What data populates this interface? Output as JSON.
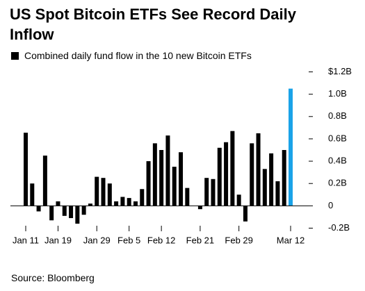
{
  "chart_data": {
    "type": "bar",
    "title": "US Spot Bitcoin ETFs See Record Daily Inflow",
    "legend_label": "Combined daily fund flow in the 10 new Bitcoin ETFs",
    "source": "Source: Bloomberg",
    "categories": [
      "Jan 11",
      null,
      null,
      null,
      null,
      "Jan 19",
      null,
      null,
      null,
      null,
      null,
      "Jan 29",
      null,
      null,
      null,
      null,
      "Feb 5",
      null,
      null,
      null,
      null,
      "Feb 12",
      null,
      null,
      null,
      null,
      null,
      "Feb 21",
      null,
      null,
      null,
      null,
      null,
      "Feb 29",
      null,
      null,
      null,
      null,
      null,
      null,
      null,
      "Mar 12"
    ],
    "values": [
      0.655,
      0.2,
      -0.05,
      0.45,
      -0.13,
      0.04,
      -0.09,
      -0.11,
      -0.16,
      -0.08,
      0.02,
      0.26,
      0.25,
      0.2,
      0.04,
      0.08,
      0.07,
      0.04,
      0.15,
      0.4,
      0.56,
      0.5,
      0.63,
      0.35,
      0.48,
      0.16,
      0,
      -0.03,
      0.25,
      0.24,
      0.52,
      0.57,
      0.67,
      0.1,
      -0.14,
      0.56,
      0.65,
      0.33,
      0.47,
      0.22,
      0.5,
      1.05
    ],
    "colors": [
      "#000000",
      "#000000",
      "#000000",
      "#000000",
      "#000000",
      "#000000",
      "#000000",
      "#000000",
      "#000000",
      "#000000",
      "#000000",
      "#000000",
      "#000000",
      "#000000",
      "#000000",
      "#000000",
      "#000000",
      "#000000",
      "#000000",
      "#000000",
      "#000000",
      "#000000",
      "#000000",
      "#000000",
      "#000000",
      "#000000",
      "#000000",
      "#000000",
      "#000000",
      "#000000",
      "#000000",
      "#000000",
      "#000000",
      "#000000",
      "#000000",
      "#000000",
      "#000000",
      "#000000",
      "#000000",
      "#000000",
      "#000000",
      "#1aa3e8"
    ],
    "color": "#000000",
    "ylim": [
      -0.2,
      1.2
    ],
    "yticks": [
      {
        "value": -0.2,
        "label": "-0.2B"
      },
      0,
      {
        "value": 0.2,
        "label": "0.2B"
      },
      {
        "value": 0.4,
        "label": "0.4B"
      },
      {
        "value": 0.6,
        "label": "0.6B"
      },
      {
        "value": 0.8,
        "label": "0.8B"
      },
      {
        "value": 1.0,
        "label": "1.0B"
      },
      {
        "value": 1.2,
        "label": "$1.2B"
      }
    ],
    "grid": false
  }
}
